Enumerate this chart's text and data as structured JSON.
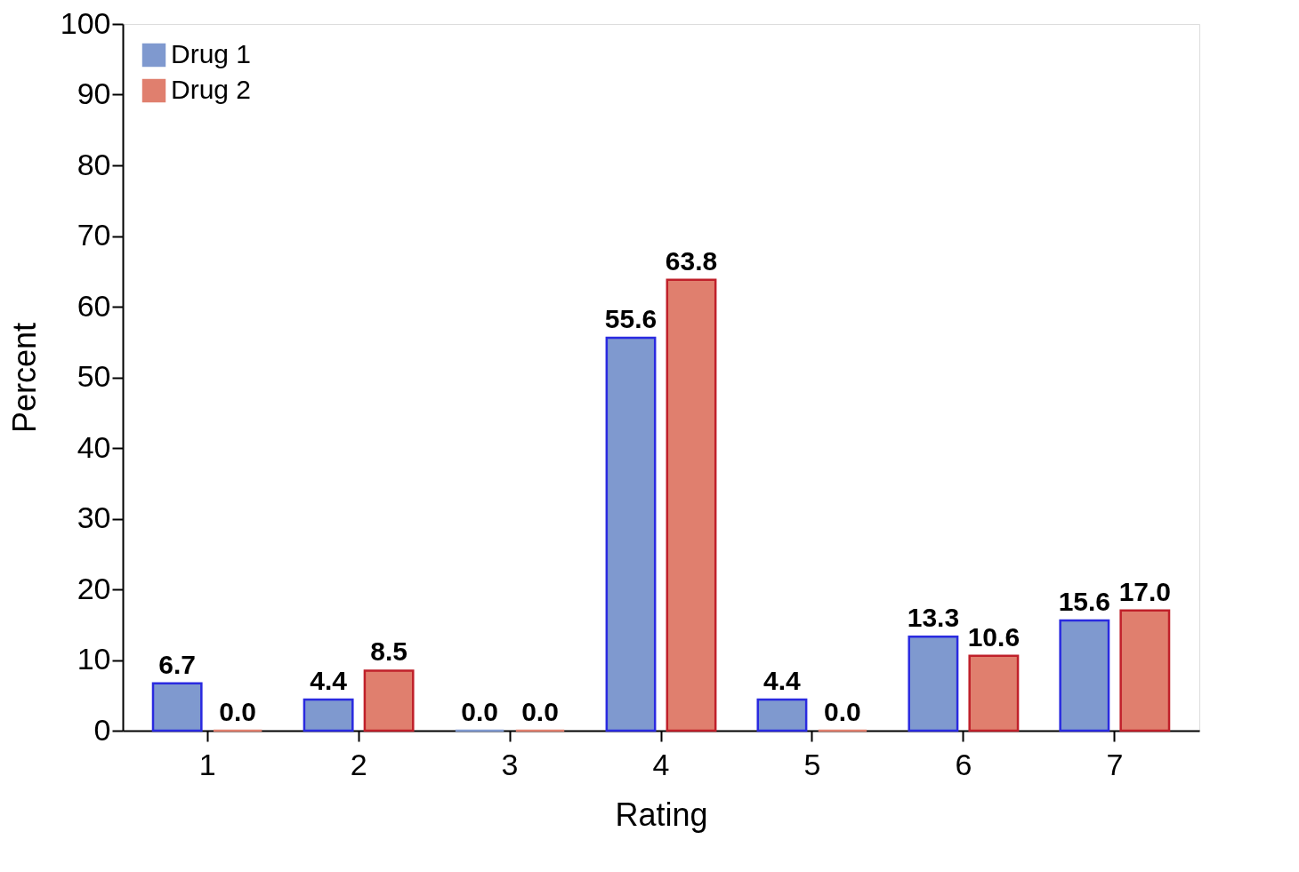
{
  "chart_data": {
    "type": "bar",
    "xlabel": "Rating",
    "ylabel": "Percent",
    "categories": [
      "1",
      "2",
      "3",
      "4",
      "5",
      "6",
      "7"
    ],
    "series": [
      {
        "name": "Drug 1",
        "color": "#7f99cf",
        "values": [
          6.7,
          4.4,
          0.0,
          55.6,
          4.4,
          13.3,
          15.6
        ],
        "value_labels": [
          "6.7",
          "4.4",
          "0.0",
          "55.6",
          "4.4",
          "13.3",
          "15.6"
        ]
      },
      {
        "name": "Drug 2",
        "color": "#e07f6e",
        "values": [
          0.0,
          8.5,
          0.0,
          63.8,
          0.0,
          10.6,
          17.0
        ],
        "value_labels": [
          "0.0",
          "8.5",
          "0.0",
          "63.8",
          "0.0",
          "10.6",
          "17.0"
        ]
      }
    ],
    "ylim": [
      0,
      100
    ],
    "yticks": [
      0,
      10,
      20,
      30,
      40,
      50,
      60,
      70,
      80,
      90,
      100
    ],
    "grid": false,
    "legend": "top left"
  }
}
